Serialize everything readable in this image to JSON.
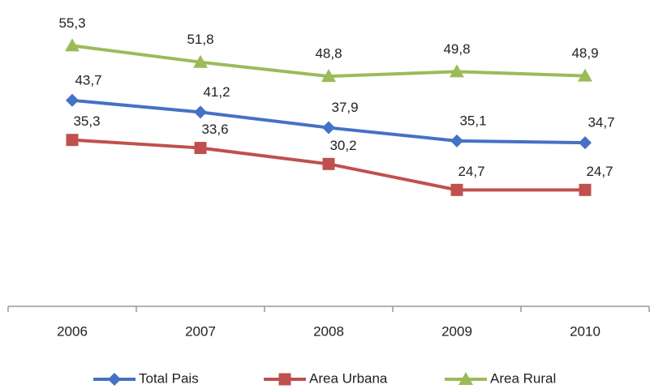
{
  "chart_data": {
    "type": "line",
    "categories": [
      "2006",
      "2007",
      "2008",
      "2009",
      "2010"
    ],
    "ylim": [
      0,
      60
    ],
    "series": [
      {
        "name": "Total Pais",
        "color": "#4472c4",
        "values": [
          43.7,
          41.2,
          37.9,
          35.1,
          34.7
        ],
        "value_labels": [
          "43,7",
          "41,2",
          "37,9",
          "35,1",
          "34,7"
        ]
      },
      {
        "name": "Area Urbana",
        "color": "#c0504d",
        "values": [
          35.3,
          33.6,
          30.2,
          24.7,
          24.7
        ],
        "value_labels": [
          "35,3",
          "33,6",
          "30,2",
          "24,7",
          "24,7"
        ]
      },
      {
        "name": "Area Rural",
        "color": "#9bbb59",
        "values": [
          55.3,
          51.8,
          48.8,
          49.8,
          48.9
        ],
        "value_labels": [
          "55,3",
          "51,8",
          "48,8",
          "49,8",
          "48,9"
        ]
      }
    ]
  }
}
